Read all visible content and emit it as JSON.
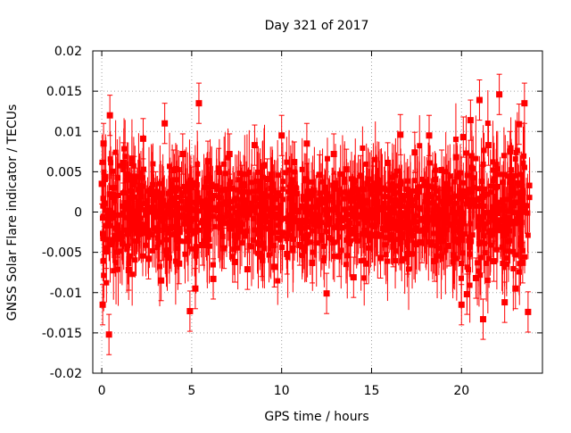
{
  "chart_data": {
    "type": "scatter",
    "title": "Day 321 of 2017",
    "xlabel": "GPS time / hours",
    "ylabel": "GNSS Solar Flare indicator / TECUs",
    "xlim": [
      -0.5,
      24.5
    ],
    "ylim": [
      -0.02,
      0.02
    ],
    "x_ticks": [
      0,
      5,
      10,
      15,
      20
    ],
    "x_tick_labels": [
      "0",
      "5",
      "10",
      "15",
      "20"
    ],
    "y_ticks": [
      -0.02,
      -0.015,
      -0.01,
      -0.005,
      0,
      0.005,
      0.01,
      0.015,
      0.02
    ],
    "y_tick_labels": [
      "-0.02",
      "-0.015",
      "-0.01",
      "-0.005",
      "0",
      "0.005",
      "0.01",
      "0.015",
      "0.02"
    ],
    "grid": true,
    "legend": "none",
    "series": [
      {
        "color": "#ff0000",
        "marker": "square",
        "error_bars": true,
        "x": [
          0.0,
          0.05,
          0.1,
          0.25,
          0.4,
          0.45,
          0.6,
          0.9,
          1.2,
          1.5,
          1.8,
          2.0,
          2.3,
          2.6,
          3.0,
          3.3,
          3.5,
          3.6,
          4.0,
          4.3,
          4.5,
          4.9,
          5.0,
          5.2,
          5.4,
          5.6,
          5.9,
          6.2,
          6.5,
          6.8,
          7.1,
          7.4,
          7.8,
          8.1,
          8.5,
          8.9,
          9.2,
          9.6,
          10.0,
          10.3,
          10.7,
          11.0,
          11.4,
          11.7,
          12.1,
          12.5,
          12.9,
          13.2,
          13.6,
          14.0,
          14.4,
          14.7,
          15.1,
          15.5,
          15.9,
          16.2,
          16.6,
          17.0,
          17.4,
          17.8,
          18.2,
          18.5,
          18.9,
          19.3,
          19.7,
          20.0,
          20.1,
          20.3,
          20.5,
          20.8,
          21.0,
          21.2,
          21.5,
          21.8,
          22.1,
          22.4,
          22.7,
          23.0,
          23.2,
          23.4,
          23.5,
          23.7
        ],
        "y": [
          0.0035,
          -0.0115,
          0.0085,
          -0.0045,
          -0.0152,
          0.012,
          0.0021,
          -0.0031,
          0.0061,
          -0.0072,
          0.0044,
          -0.0012,
          0.0091,
          -0.0058,
          0.0025,
          -0.0085,
          0.011,
          -0.0021,
          0.0052,
          -0.0064,
          0.0072,
          -0.0123,
          0.0031,
          -0.0095,
          0.0135,
          -0.0041,
          0.0063,
          -0.0083,
          0.0054,
          -0.0045,
          0.0072,
          -0.0062,
          0.0033,
          -0.0071,
          0.0083,
          -0.0055,
          0.0041,
          -0.0068,
          0.0095,
          -0.0052,
          0.0062,
          -0.0041,
          0.0085,
          -0.0063,
          0.0046,
          -0.0101,
          0.0072,
          -0.0055,
          0.0053,
          -0.0081,
          0.0045,
          -0.0064,
          0.0032,
          -0.0057,
          0.0061,
          -0.0043,
          0.0096,
          -0.0052,
          0.0074,
          -0.0038,
          0.0095,
          -0.0061,
          0.0052,
          -0.0042,
          0.0068,
          -0.0115,
          0.0093,
          -0.0102,
          0.0114,
          -0.0082,
          0.0139,
          -0.0133,
          0.0083,
          -0.0061,
          0.0146,
          -0.0112,
          0.0075,
          -0.0095,
          0.0109,
          -0.0063,
          0.0135,
          -0.0124
        ]
      }
    ]
  }
}
